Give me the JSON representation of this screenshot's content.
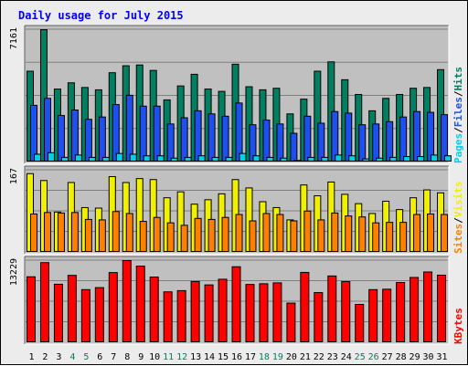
{
  "chart_data": {
    "type": "bar",
    "title": "Daily usage for July 2015",
    "days": [
      "1",
      "2",
      "3",
      "4",
      "5",
      "6",
      "7",
      "8",
      "9",
      "10",
      "11",
      "12",
      "13",
      "14",
      "15",
      "16",
      "17",
      "18",
      "19",
      "20",
      "21",
      "22",
      "23",
      "24",
      "25",
      "26",
      "27",
      "28",
      "29",
      "30",
      "31"
    ],
    "weekend_days": [
      "4",
      "5",
      "11",
      "12",
      "18",
      "19",
      "25",
      "26"
    ],
    "panels": [
      {
        "id": "pages-files-hits",
        "max_label": "7161",
        "ymax": 7161,
        "side_labels": [
          "Pages",
          "/",
          "Files",
          "/",
          "Hits"
        ],
        "series": [
          {
            "name": "Hits",
            "color": "#008060",
            "values": [
              4914,
              7161,
              3948,
              4284,
              4032,
              3906,
              4830,
              5208,
              5250,
              4956,
              3360,
              4116,
              4746,
              3948,
              3822,
              5292,
              4074,
              3906,
              3990,
              2604,
              3402,
              4914,
              5418,
              4452,
              3654,
              2772,
              3444,
              3654,
              3990,
              4032,
              4998
            ]
          },
          {
            "name": "Files",
            "color": "#1e50f0",
            "values": [
              3066,
              3444,
              2520,
              2814,
              2310,
              2436,
              3108,
              3612,
              3024,
              3024,
              2058,
              2394,
              2772,
              2604,
              2478,
              3192,
              2016,
              2268,
              2058,
              1554,
              2478,
              2100,
              2730,
              2646,
              2016,
              2058,
              2184,
              2436,
              2730,
              2688,
              2562
            ]
          },
          {
            "name": "Pages",
            "color": "#00d0e8",
            "values": [
              420,
              504,
              252,
              378,
              252,
              252,
              462,
              420,
              336,
              336,
              210,
              252,
              336,
              252,
              252,
              462,
              336,
              252,
              210,
              84,
              252,
              252,
              378,
              336,
              168,
              210,
              252,
              294,
              294,
              378,
              336
            ]
          }
        ]
      },
      {
        "id": "visits-sites",
        "max_label": "167",
        "ymax": 167,
        "side_labels": [
          "Sites",
          "/",
          "Visits"
        ],
        "series": [
          {
            "name": "Visits",
            "color": "#f0f000",
            "values": [
              160,
              146,
              82,
              142,
              91,
              90,
              154,
              142,
              150,
              148,
              111,
              123,
              98,
              107,
              119,
              148,
              131,
              103,
              91,
              66,
              137,
              115,
              143,
              118,
              99,
              79,
              104,
              87,
              111,
              127,
              121
            ]
          },
          {
            "name": "Sites",
            "color": "#ff8000",
            "values": [
              78,
              81,
              80,
              81,
              67,
              66,
              83,
              79,
              63,
              71,
              60,
              55,
              69,
              67,
              71,
              77,
              64,
              79,
              77,
              64,
              84,
              66,
              80,
              74,
              72,
              60,
              61,
              61,
              77,
              78,
              77
            ]
          }
        ]
      },
      {
        "id": "kbytes",
        "max_label": "13229",
        "ymax": 13229,
        "side_labels": [
          "KBytes"
        ],
        "series": [
          {
            "name": "KBytes",
            "color": "#ff0000",
            "values": [
              10620,
              12898,
              9420,
              10848,
              8553,
              8877,
              11298,
              13229,
              12335,
              10575,
              8193,
              8390,
              9856,
              9314,
              10225,
              12240,
              9386,
              9501,
              9641,
              6382,
              11327,
              8076,
              10752,
              9841,
              6171,
              8553,
              8618,
              9698,
              10511,
              11394,
              10882
            ]
          }
        ]
      }
    ]
  }
}
